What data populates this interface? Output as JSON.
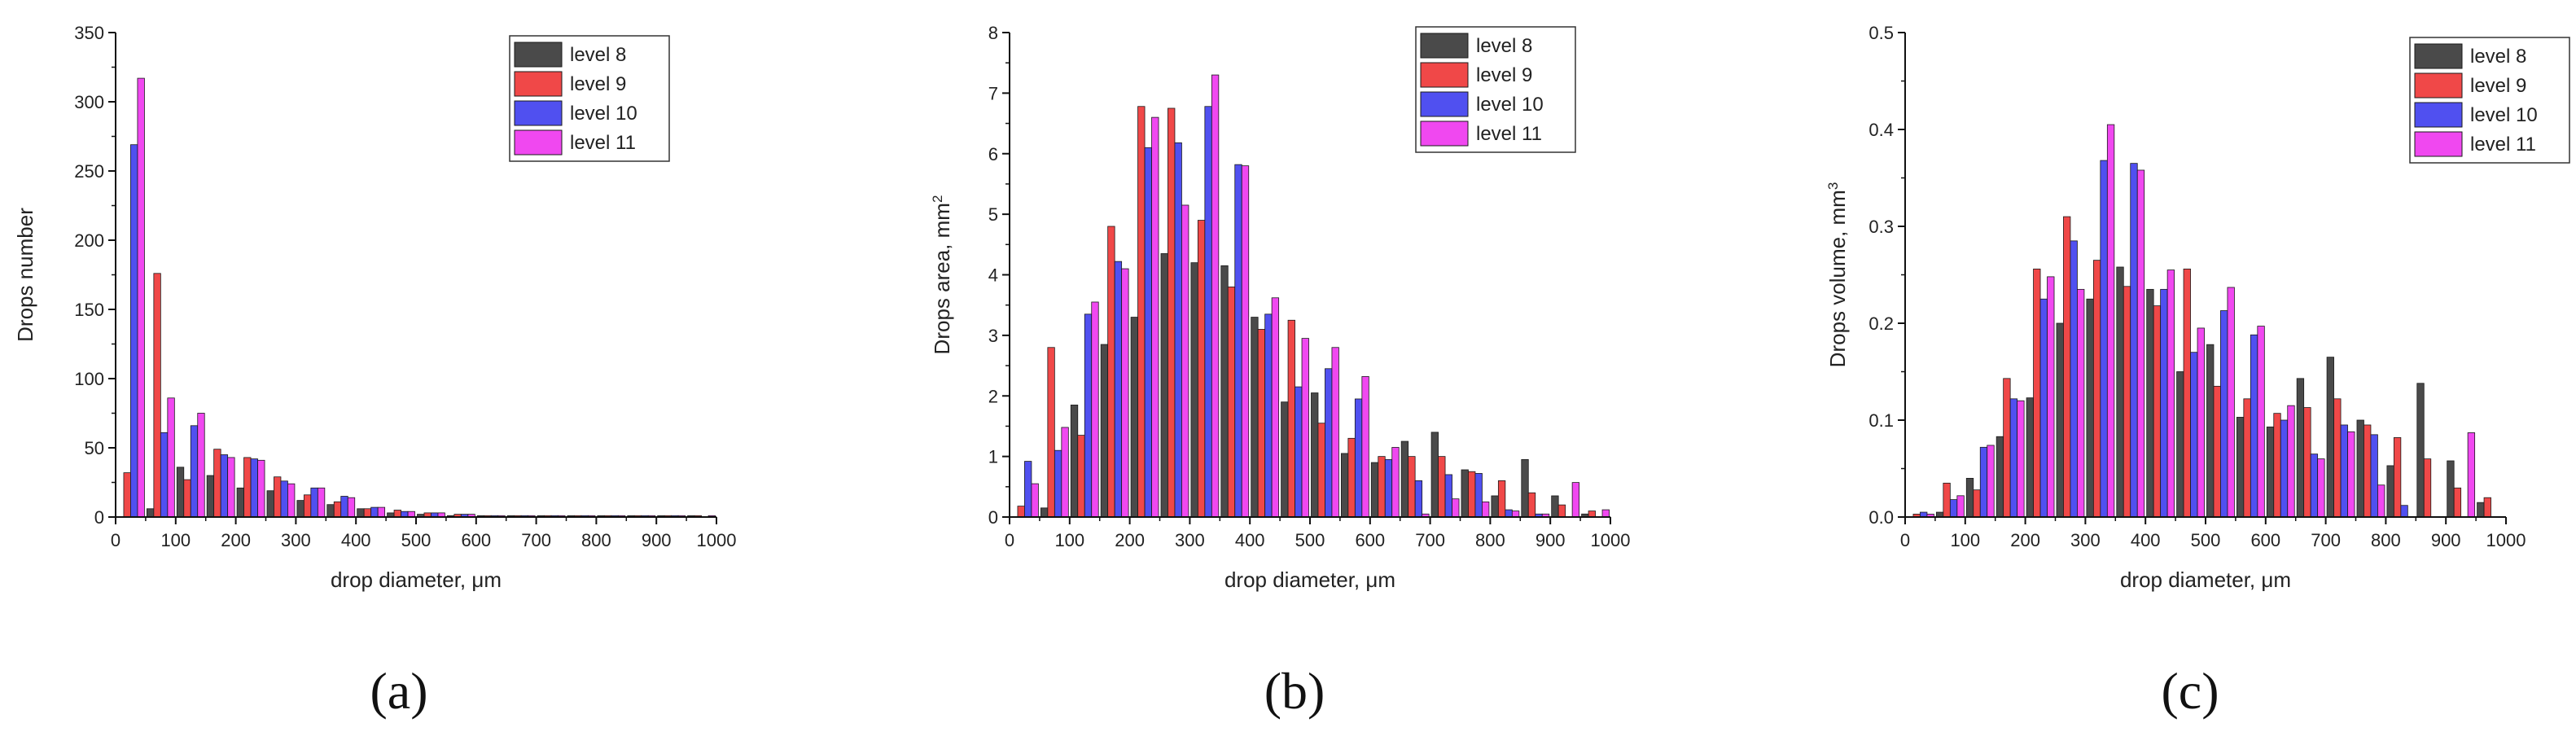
{
  "chart_data": [
    {
      "type": "bar",
      "panel_label": "(a)",
      "xlabel": "drop diameter, μm",
      "ylabel": "Drops number",
      "ylabel_unit_superscript": "",
      "xlim": [
        0,
        1000
      ],
      "ylim": [
        0,
        350
      ],
      "xticks": [
        0,
        100,
        200,
        300,
        400,
        500,
        600,
        700,
        800,
        900,
        1000
      ],
      "yticks": [
        0,
        50,
        100,
        150,
        200,
        250,
        300,
        350
      ],
      "ytick_decimals": 0,
      "x": [
        25,
        75,
        125,
        175,
        225,
        275,
        325,
        375,
        425,
        475,
        525,
        575,
        625,
        675,
        725,
        775,
        825,
        875,
        925,
        975
      ],
      "legend_position": "top-right",
      "series": [
        {
          "name": "level 8",
          "color": "#4a4a4a",
          "values": [
            0,
            6,
            36,
            30,
            21,
            19,
            12,
            9,
            6,
            3,
            2,
            1,
            1,
            1,
            1,
            1,
            1,
            1,
            1,
            1
          ]
        },
        {
          "name": "level 9",
          "color": "#f04848",
          "values": [
            32,
            176,
            27,
            49,
            43,
            29,
            16,
            11,
            6,
            5,
            3,
            2,
            1,
            1,
            1,
            1,
            1,
            1,
            1,
            1
          ]
        },
        {
          "name": "level 10",
          "color": "#5050f0",
          "values": [
            269,
            61,
            66,
            45,
            42,
            26,
            21,
            15,
            7,
            4,
            3,
            2,
            1,
            1,
            1,
            1,
            1,
            1,
            1,
            0
          ]
        },
        {
          "name": "level 11",
          "color": "#f048f0",
          "values": [
            317,
            86,
            75,
            43,
            41,
            24,
            21,
            14,
            7,
            4,
            3,
            2,
            1,
            1,
            1,
            1,
            1,
            1,
            1,
            1
          ]
        }
      ]
    },
    {
      "type": "bar",
      "panel_label": "(b)",
      "xlabel": "drop diameter, μm",
      "ylabel": "Drops area, mm",
      "ylabel_unit_superscript": "2",
      "xlim": [
        0,
        1000
      ],
      "ylim": [
        0,
        8
      ],
      "xticks": [
        0,
        100,
        200,
        300,
        400,
        500,
        600,
        700,
        800,
        900,
        1000
      ],
      "yticks": [
        0,
        1,
        2,
        3,
        4,
        5,
        6,
        7,
        8
      ],
      "ytick_decimals": 0,
      "x": [
        25,
        75,
        125,
        175,
        225,
        275,
        325,
        375,
        425,
        475,
        525,
        575,
        625,
        675,
        725,
        775,
        825,
        875,
        925,
        975
      ],
      "legend_position": "top-right",
      "series": [
        {
          "name": "level 8",
          "color": "#4a4a4a",
          "values": [
            0.0,
            0.15,
            1.85,
            2.85,
            3.3,
            4.35,
            4.2,
            4.15,
            3.3,
            1.9,
            2.05,
            1.05,
            0.9,
            1.25,
            1.4,
            0.78,
            0.35,
            0.95,
            0.35,
            0.05
          ]
        },
        {
          "name": "level 9",
          "color": "#f04848",
          "values": [
            0.18,
            2.8,
            1.35,
            4.8,
            6.78,
            6.75,
            4.9,
            3.8,
            3.1,
            3.25,
            1.55,
            1.3,
            1.0,
            1.0,
            1.0,
            0.75,
            0.6,
            0.4,
            0.2,
            0.1
          ]
        },
        {
          "name": "level 10",
          "color": "#5050f0",
          "values": [
            0.92,
            1.1,
            3.35,
            4.22,
            6.1,
            6.18,
            6.78,
            5.82,
            3.35,
            2.15,
            2.45,
            1.95,
            0.95,
            0.6,
            0.7,
            0.72,
            0.12,
            0.05,
            0.0,
            0.0
          ]
        },
        {
          "name": "level 11",
          "color": "#f048f0",
          "values": [
            0.55,
            1.48,
            3.55,
            4.1,
            6.6,
            5.15,
            7.3,
            5.8,
            3.62,
            2.95,
            2.8,
            2.32,
            1.15,
            0.05,
            0.3,
            0.25,
            0.1,
            0.05,
            0.57,
            0.12
          ]
        }
      ]
    },
    {
      "type": "bar",
      "panel_label": "(c)",
      "xlabel": "drop diameter, μm",
      "ylabel": "Drops volume, mm",
      "ylabel_unit_superscript": "3",
      "xlim": [
        0,
        1000
      ],
      "ylim": [
        0,
        0.5
      ],
      "xticks": [
        0,
        100,
        200,
        300,
        400,
        500,
        600,
        700,
        800,
        900,
        1000
      ],
      "yticks": [
        0,
        0.1,
        0.2,
        0.3,
        0.4,
        0.5
      ],
      "ytick_decimals": 1,
      "x": [
        25,
        75,
        125,
        175,
        225,
        275,
        325,
        375,
        425,
        475,
        525,
        575,
        625,
        675,
        725,
        775,
        825,
        875,
        925,
        975
      ],
      "legend_position": "top-right",
      "series": [
        {
          "name": "level 8",
          "color": "#4a4a4a",
          "values": [
            0.0,
            0.005,
            0.04,
            0.083,
            0.123,
            0.2,
            0.225,
            0.258,
            0.235,
            0.15,
            0.178,
            0.103,
            0.093,
            0.143,
            0.165,
            0.1,
            0.053,
            0.138,
            0.058,
            0.015
          ]
        },
        {
          "name": "level 9",
          "color": "#f04848",
          "values": [
            0.003,
            0.035,
            0.028,
            0.143,
            0.256,
            0.31,
            0.265,
            0.238,
            0.218,
            0.256,
            0.135,
            0.122,
            0.107,
            0.113,
            0.122,
            0.095,
            0.082,
            0.06,
            0.03,
            0.02
          ]
        },
        {
          "name": "level 10",
          "color": "#5050f0",
          "values": [
            0.005,
            0.018,
            0.072,
            0.122,
            0.225,
            0.285,
            0.368,
            0.365,
            0.235,
            0.17,
            0.213,
            0.188,
            0.1,
            0.065,
            0.095,
            0.085,
            0.012,
            0.0,
            0.0,
            0.0
          ]
        },
        {
          "name": "level 11",
          "color": "#f048f0",
          "values": [
            0.003,
            0.022,
            0.074,
            0.12,
            0.248,
            0.235,
            0.405,
            0.358,
            0.255,
            0.195,
            0.237,
            0.197,
            0.115,
            0.06,
            0.088,
            0.033,
            0.0,
            0.0,
            0.087,
            0.0
          ]
        }
      ]
    }
  ]
}
